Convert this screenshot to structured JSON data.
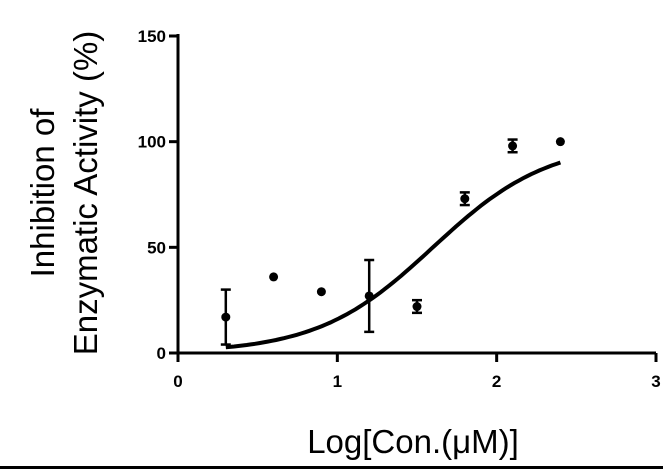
{
  "chart_data": {
    "type": "scatter",
    "xlabel": "Log[Con.(μM)]",
    "ylabel": [
      "Inhibition of",
      "Enzymatic Activity (%)"
    ],
    "xlim": [
      0,
      3
    ],
    "ylim": [
      0,
      150
    ],
    "x_ticks": [
      "0",
      "1",
      "2",
      "3"
    ],
    "y_ticks": [
      "0",
      "50",
      "100",
      "150"
    ],
    "grid": false,
    "points": [
      {
        "x": 0.3,
        "y": 17,
        "err": 13
      },
      {
        "x": 0.6,
        "y": 36,
        "err": 0
      },
      {
        "x": 0.9,
        "y": 29,
        "err": 0
      },
      {
        "x": 1.2,
        "y": 27,
        "err": 17
      },
      {
        "x": 1.5,
        "y": 22,
        "err": 3
      },
      {
        "x": 1.8,
        "y": 73,
        "err": 3
      },
      {
        "x": 2.1,
        "y": 98,
        "err": 3
      },
      {
        "x": 2.4,
        "y": 100,
        "err": 0
      }
    ],
    "fit": {
      "type": "sigmoid",
      "bottom": 0,
      "top": 100,
      "logIC50": 1.6,
      "hill": 1.2,
      "x_range": [
        0.3,
        2.4
      ]
    }
  }
}
